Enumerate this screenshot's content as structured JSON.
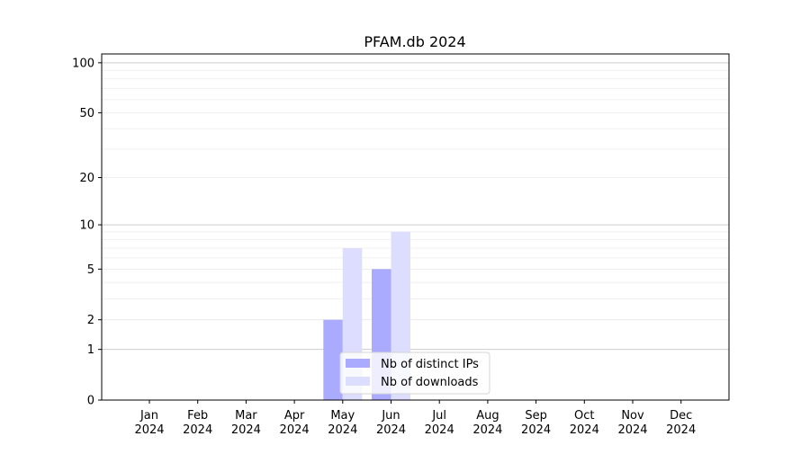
{
  "chart_data": {
    "type": "bar",
    "title": "PFAM.db 2024",
    "xlabel": "",
    "ylabel": "",
    "yscale": "log(1+y)",
    "ylim": [
      0,
      113
    ],
    "yticks": [
      0,
      1,
      2,
      5,
      10,
      20,
      50,
      100
    ],
    "ytick_labels": [
      "0",
      "1",
      "2",
      "5",
      "10",
      "20",
      "50",
      "100"
    ],
    "categories": [
      "Jan\n2024",
      "Feb\n2024",
      "Mar\n2024",
      "Apr\n2024",
      "May\n2024",
      "Jun\n2024",
      "Jul\n2024",
      "Aug\n2024",
      "Sep\n2024",
      "Oct\n2024",
      "Nov\n2024",
      "Dec\n2024"
    ],
    "series": [
      {
        "name": "Nb of distinct IPs",
        "color": "#aaaaff",
        "values": [
          0,
          0,
          0,
          0,
          2,
          5,
          0,
          0,
          0,
          0,
          0,
          0
        ]
      },
      {
        "name": "Nb of downloads",
        "color": "#ddddff",
        "values": [
          0,
          0,
          0,
          0,
          7,
          9,
          0,
          0,
          0,
          0,
          0,
          0
        ]
      }
    ],
    "grid": true,
    "legend": "lower-center"
  }
}
